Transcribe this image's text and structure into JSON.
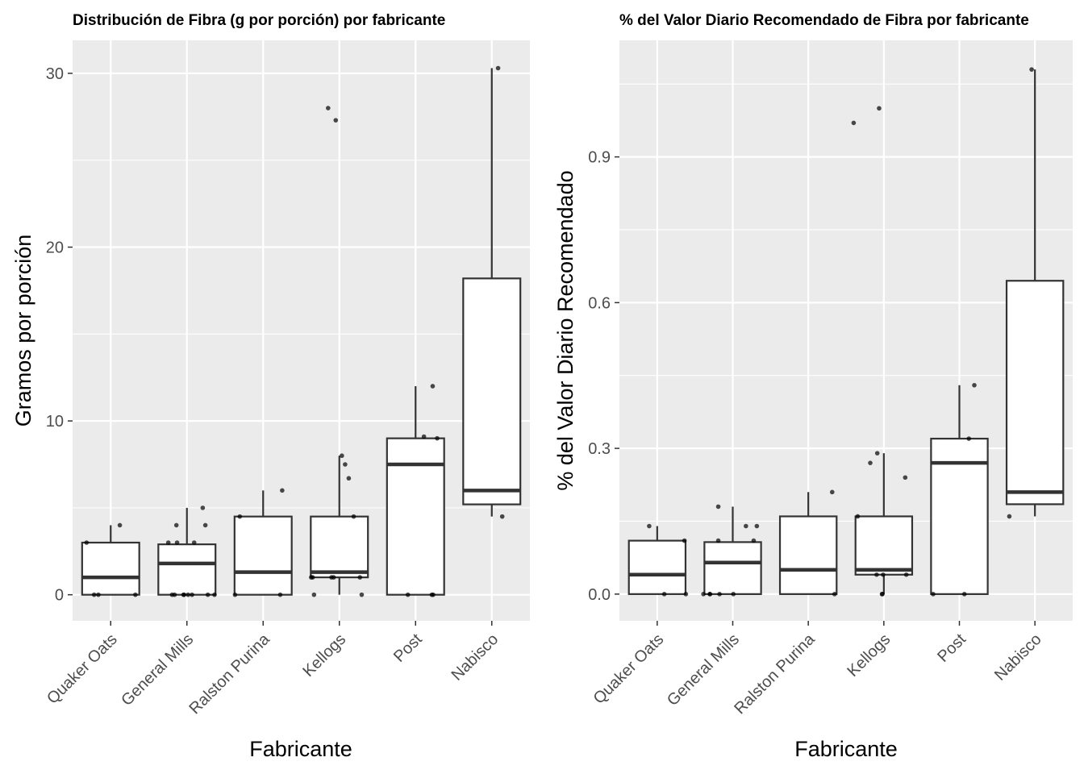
{
  "chart_data": [
    {
      "type": "boxplot",
      "title": "Distribución de Fibra (g por porción) por fabricante",
      "xlabel": "Fabricante",
      "ylabel": "Gramos por porción",
      "ylim": [
        -1.5,
        31.9
      ],
      "yticks": [
        0,
        10,
        20,
        30
      ],
      "ytick_labels": [
        "0",
        "10",
        "20",
        "30"
      ],
      "grid": true,
      "categories": [
        "Quaker Oats",
        "General Mills",
        "Ralston Purina",
        "Kellogs",
        "Post",
        "Nabisco"
      ],
      "boxes": [
        {
          "category": "Quaker Oats",
          "min": 0,
          "q1": 0,
          "median": 1,
          "q3": 3,
          "max": 4
        },
        {
          "category": "General Mills",
          "min": 0,
          "q1": 0,
          "median": 1.8,
          "q3": 2.9,
          "max": 5
        },
        {
          "category": "Ralston Purina",
          "min": 0,
          "q1": 0,
          "median": 1.3,
          "q3": 4.5,
          "max": 6
        },
        {
          "category": "Kellogs",
          "min": 0,
          "q1": 1.0,
          "median": 1.3,
          "q3": 4.5,
          "max": 8
        },
        {
          "category": "Post",
          "min": 0,
          "q1": 0,
          "median": 7.5,
          "q3": 9,
          "max": 12
        },
        {
          "category": "Nabisco",
          "min": 4.5,
          "q1": 5.2,
          "median": 6,
          "q3": 18.2,
          "max": 30.3
        }
      ],
      "points": [
        {
          "category": "Quaker Oats",
          "values": [
            4,
            0,
            0,
            3,
            0
          ]
        },
        {
          "category": "General Mills",
          "values": [
            5,
            3,
            4,
            4,
            3,
            3,
            0,
            0,
            0,
            0,
            0,
            0,
            0,
            0
          ]
        },
        {
          "category": "Ralston Purina",
          "values": [
            6,
            4.5,
            0,
            0
          ]
        },
        {
          "category": "Kellogs",
          "values": [
            28,
            27.3,
            8,
            7.5,
            6.7,
            4.5,
            1,
            1,
            1,
            1,
            1,
            0,
            0
          ]
        },
        {
          "category": "Post",
          "values": [
            12,
            9.1,
            9,
            0,
            0,
            0
          ]
        },
        {
          "category": "Nabisco",
          "values": [
            30.3,
            4.5
          ]
        }
      ]
    },
    {
      "type": "boxplot",
      "title": "% del Valor Diario Recomendado de Fibra por fabricante",
      "xlabel": "Fabricante",
      "ylabel": "% del Valor Diario Recomendado",
      "ylim": [
        -0.055,
        1.14
      ],
      "yticks": [
        0,
        0.3,
        0.6,
        0.9
      ],
      "ytick_labels": [
        "0.0",
        "0.3",
        "0.6",
        "0.9"
      ],
      "grid": true,
      "categories": [
        "Quaker Oats",
        "General Mills",
        "Ralston Purina",
        "Kellogs",
        "Post",
        "Nabisco"
      ],
      "boxes": [
        {
          "category": "Quaker Oats",
          "min": 0,
          "q1": 0,
          "median": 0.04,
          "q3": 0.11,
          "max": 0.14
        },
        {
          "category": "General Mills",
          "min": 0,
          "q1": 0,
          "median": 0.065,
          "q3": 0.107,
          "max": 0.18
        },
        {
          "category": "Ralston Purina",
          "min": 0,
          "q1": 0,
          "median": 0.05,
          "q3": 0.16,
          "max": 0.21
        },
        {
          "category": "Kellogs",
          "min": 0,
          "q1": 0.04,
          "median": 0.05,
          "q3": 0.16,
          "max": 0.29
        },
        {
          "category": "Post",
          "min": 0,
          "q1": 0,
          "median": 0.27,
          "q3": 0.32,
          "max": 0.43
        },
        {
          "category": "Nabisco",
          "min": 0.16,
          "q1": 0.185,
          "median": 0.21,
          "q3": 0.645,
          "max": 1.08
        }
      ],
      "points": [
        {
          "category": "Quaker Oats",
          "values": [
            0.14,
            0.11,
            0,
            0
          ]
        },
        {
          "category": "General Mills",
          "values": [
            0.18,
            0.14,
            0.14,
            0.11,
            0.11,
            0,
            0,
            0,
            0,
            0
          ]
        },
        {
          "category": "Ralston Purina",
          "values": [
            0.21,
            0
          ]
        },
        {
          "category": "Kellogs",
          "values": [
            1.0,
            0.97,
            0.29,
            0.27,
            0.24,
            0.16,
            0.04,
            0.04,
            0.04,
            0,
            0
          ]
        },
        {
          "category": "Post",
          "values": [
            0.43,
            0.32,
            0,
            0
          ]
        },
        {
          "category": "Nabisco",
          "values": [
            1.08,
            0.16
          ]
        }
      ]
    }
  ]
}
